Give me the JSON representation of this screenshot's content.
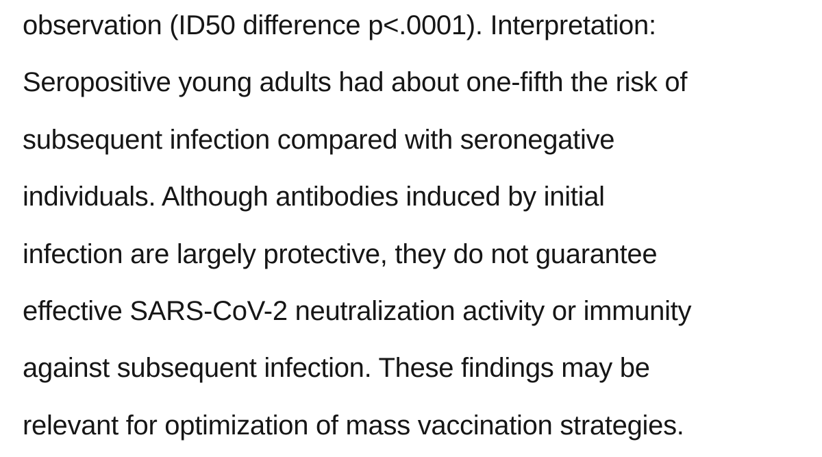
{
  "document": {
    "lines": [
      "observation (ID50 difference p<.0001). Interpretation:",
      "Seropositive young adults had about one-fifth the risk of",
      "subsequent infection compared with seronegative",
      "individuals. Although antibodies induced by initial",
      "infection are largely protective, they do not guarantee",
      "effective SARS-CoV-2 neutralization activity or immunity",
      "against subsequent infection. These findings may be",
      "relevant for optimization of mass vaccination strategies."
    ]
  }
}
